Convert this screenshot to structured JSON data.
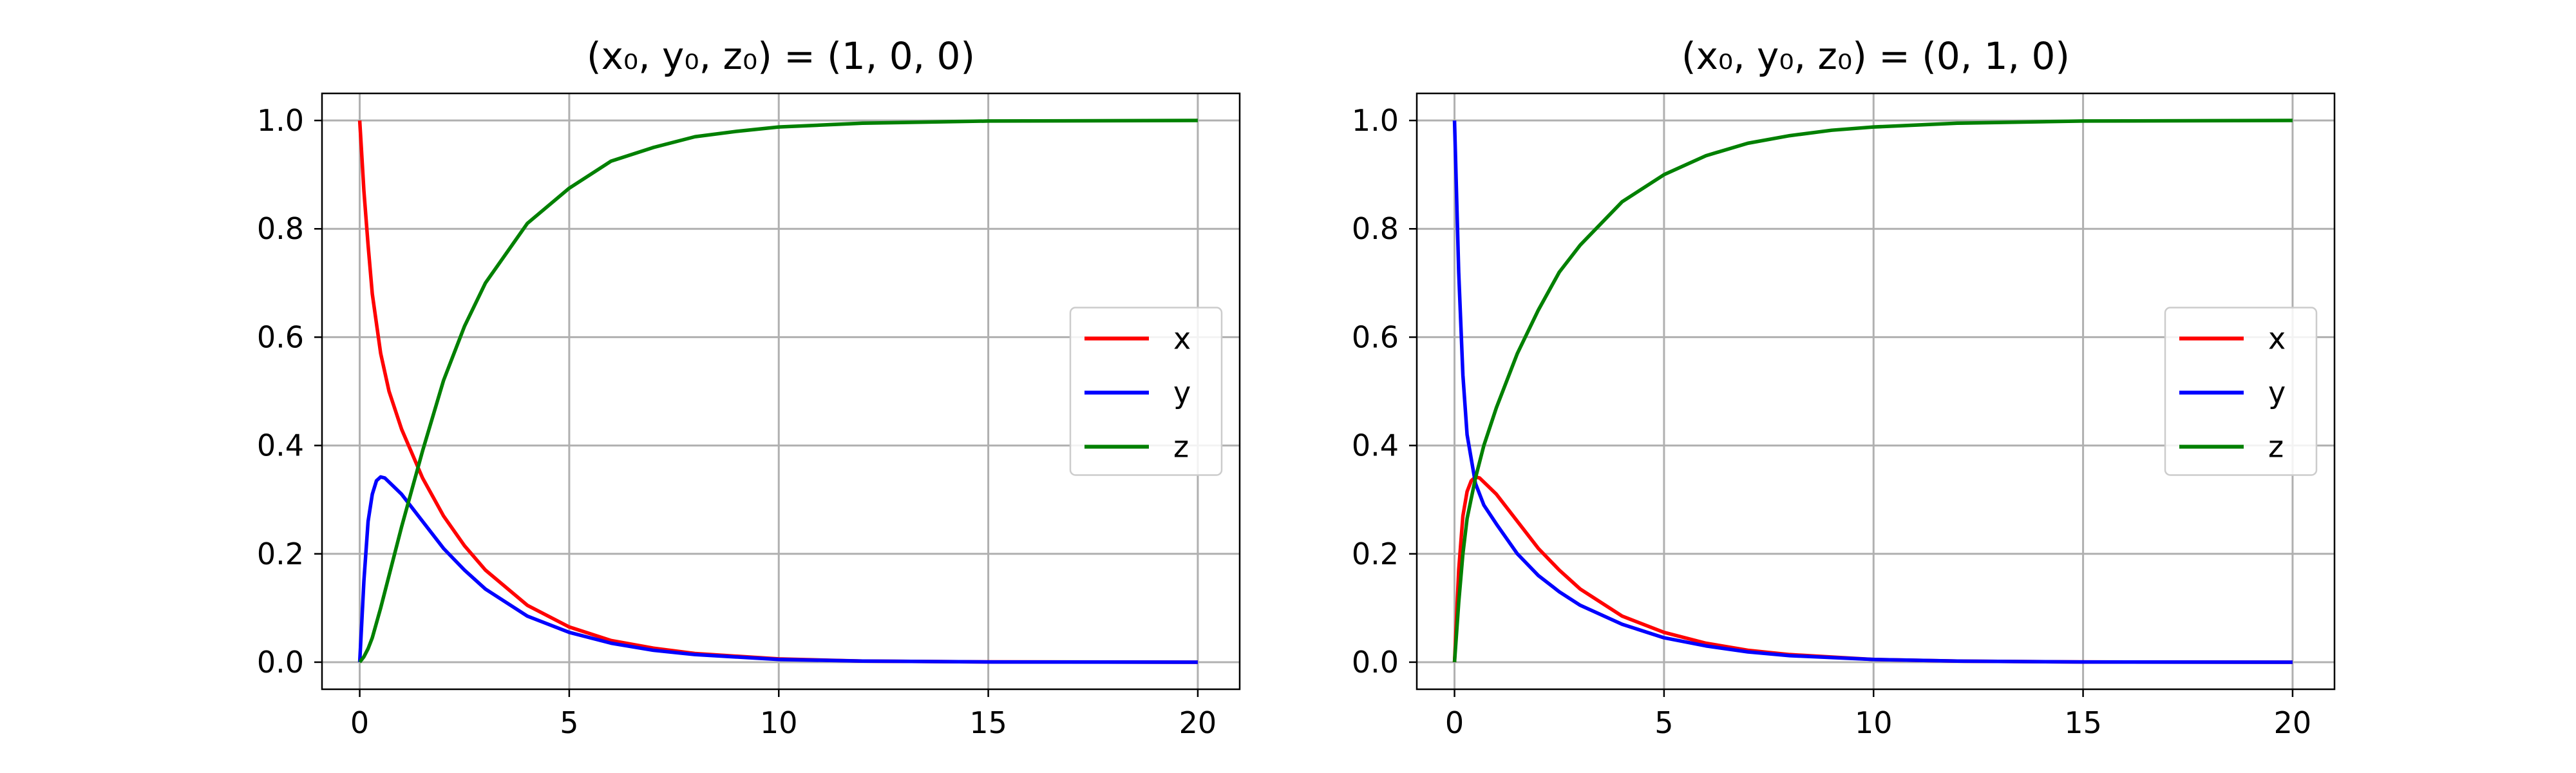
{
  "chart_data": [
    {
      "type": "line",
      "title": "(x₀, y₀, z₀) = (1, 0, 0)",
      "xlim": [
        -0.9,
        21
      ],
      "ylim": [
        -0.05,
        1.05
      ],
      "xticks": [
        0,
        5,
        10,
        15,
        20
      ],
      "yticks": [
        0.0,
        0.2,
        0.4,
        0.6,
        0.8,
        1.0
      ],
      "xtick_labels": [
        "0",
        "5",
        "10",
        "15",
        "20"
      ],
      "ytick_labels": [
        "0.0",
        "0.2",
        "0.4",
        "0.6",
        "0.8",
        "1.0"
      ],
      "grid": true,
      "legend_position": "center-right",
      "series": [
        {
          "name": "x",
          "color": "#ff0000",
          "x": [
            0,
            0.1,
            0.2,
            0.3,
            0.5,
            0.7,
            1,
            1.5,
            2,
            2.5,
            3,
            4,
            5,
            6,
            7,
            8,
            10,
            12,
            15,
            20
          ],
          "y": [
            1.0,
            0.87,
            0.77,
            0.68,
            0.57,
            0.5,
            0.43,
            0.34,
            0.27,
            0.215,
            0.17,
            0.105,
            0.065,
            0.04,
            0.026,
            0.016,
            0.006,
            0.002,
            0.0005,
            0.0
          ]
        },
        {
          "name": "y",
          "color": "#0000ff",
          "x": [
            0,
            0.1,
            0.2,
            0.3,
            0.4,
            0.5,
            0.6,
            0.8,
            1,
            1.5,
            2,
            2.5,
            3,
            4,
            5,
            6,
            7,
            8,
            10,
            12,
            15,
            20
          ],
          "y": [
            0.0,
            0.15,
            0.26,
            0.31,
            0.335,
            0.342,
            0.34,
            0.325,
            0.31,
            0.26,
            0.21,
            0.17,
            0.135,
            0.085,
            0.055,
            0.035,
            0.022,
            0.014,
            0.005,
            0.002,
            0.0004,
            0.0
          ]
        },
        {
          "name": "z",
          "color": "#008000",
          "x": [
            0,
            0.1,
            0.2,
            0.3,
            0.5,
            0.7,
            1,
            1.5,
            2,
            2.5,
            3,
            4,
            5,
            6,
            7,
            8,
            9,
            10,
            12,
            15,
            20
          ],
          "y": [
            0.0,
            0.01,
            0.025,
            0.045,
            0.1,
            0.16,
            0.25,
            0.39,
            0.52,
            0.62,
            0.7,
            0.81,
            0.875,
            0.925,
            0.95,
            0.97,
            0.98,
            0.988,
            0.995,
            0.999,
            1.0
          ]
        }
      ]
    },
    {
      "type": "line",
      "title": "(x₀, y₀, z₀) = (0, 1, 0)",
      "xlim": [
        -0.9,
        21
      ],
      "ylim": [
        -0.05,
        1.05
      ],
      "xticks": [
        0,
        5,
        10,
        15,
        20
      ],
      "yticks": [
        0.0,
        0.2,
        0.4,
        0.6,
        0.8,
        1.0
      ],
      "xtick_labels": [
        "0",
        "5",
        "10",
        "15",
        "20"
      ],
      "ytick_labels": [
        "0.0",
        "0.2",
        "0.4",
        "0.6",
        "0.8",
        "1.0"
      ],
      "grid": true,
      "legend_position": "center-right",
      "series": [
        {
          "name": "x",
          "color": "#ff0000",
          "x": [
            0,
            0.1,
            0.2,
            0.3,
            0.4,
            0.5,
            0.6,
            0.8,
            1,
            1.5,
            2,
            2.5,
            3,
            4,
            5,
            6,
            7,
            8,
            10,
            12,
            15,
            20
          ],
          "y": [
            0.0,
            0.17,
            0.27,
            0.315,
            0.335,
            0.342,
            0.34,
            0.325,
            0.31,
            0.26,
            0.21,
            0.17,
            0.135,
            0.085,
            0.055,
            0.035,
            0.022,
            0.014,
            0.005,
            0.002,
            0.0004,
            0.0
          ]
        },
        {
          "name": "y",
          "color": "#0000ff",
          "x": [
            0,
            0.1,
            0.2,
            0.3,
            0.5,
            0.7,
            1,
            1.5,
            2,
            2.5,
            3,
            4,
            5,
            6,
            7,
            8,
            10,
            12,
            15,
            20
          ],
          "y": [
            1.0,
            0.72,
            0.53,
            0.42,
            0.33,
            0.29,
            0.255,
            0.2,
            0.16,
            0.13,
            0.105,
            0.07,
            0.045,
            0.03,
            0.019,
            0.012,
            0.005,
            0.002,
            0.0004,
            0.0
          ]
        },
        {
          "name": "z",
          "color": "#008000",
          "x": [
            0,
            0.1,
            0.2,
            0.3,
            0.5,
            0.7,
            1,
            1.5,
            2,
            2.5,
            3,
            4,
            5,
            6,
            7,
            8,
            9,
            10,
            12,
            15,
            20
          ],
          "y": [
            0.0,
            0.11,
            0.2,
            0.265,
            0.34,
            0.4,
            0.47,
            0.57,
            0.65,
            0.72,
            0.77,
            0.85,
            0.9,
            0.935,
            0.958,
            0.972,
            0.982,
            0.988,
            0.995,
            0.999,
            1.0
          ]
        }
      ]
    }
  ]
}
